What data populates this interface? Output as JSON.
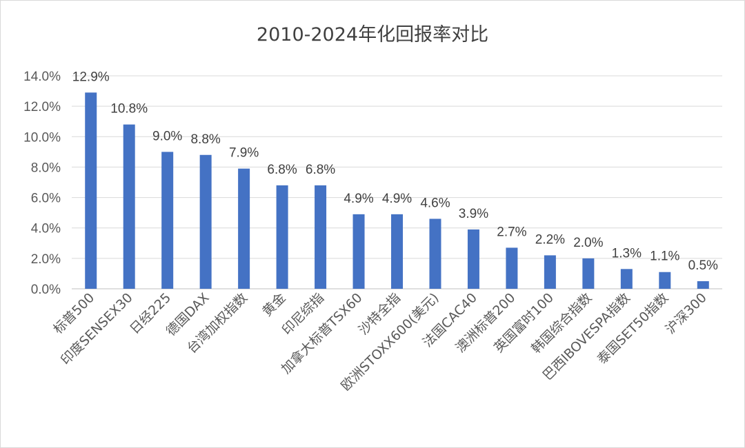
{
  "chart_data": {
    "type": "bar",
    "title": "2010-2024年化回报率对比",
    "xlabel": "",
    "ylabel": "",
    "ylim": [
      0,
      14
    ],
    "yticks": [
      0,
      2,
      4,
      6,
      8,
      10,
      12,
      14
    ],
    "ytick_labels": [
      "0.0%",
      "2.0%",
      "4.0%",
      "6.0%",
      "8.0%",
      "10.0%",
      "12.0%",
      "14.0%"
    ],
    "grid": true,
    "legend": "none",
    "bar_color": "#4472c4",
    "categories": [
      "标普500",
      "印度SENSEX30",
      "日经225",
      "德国DAX",
      "台湾加权指数",
      "黄金",
      "印尼综指",
      "加拿大标普TSX60",
      "沙特全指",
      "欧洲STOXX600(美元)",
      "法国CAC40",
      "澳洲标普200",
      "英国富时100",
      "韩国综合指数",
      "巴西IBOVESPA指数",
      "泰国SET50指数",
      "沪深300"
    ],
    "values": [
      12.9,
      10.8,
      9.0,
      8.8,
      7.9,
      6.8,
      6.8,
      4.9,
      4.9,
      4.6,
      3.9,
      2.7,
      2.2,
      2.0,
      1.3,
      1.1,
      0.5
    ],
    "data_labels": [
      "12.9%",
      "10.8%",
      "9.0%",
      "8.8%",
      "7.9%",
      "6.8%",
      "6.8%",
      "4.9%",
      "4.9%",
      "4.6%",
      "3.9%",
      "2.7%",
      "2.2%",
      "2.0%",
      "1.3%",
      "1.1%",
      "0.5%"
    ]
  }
}
